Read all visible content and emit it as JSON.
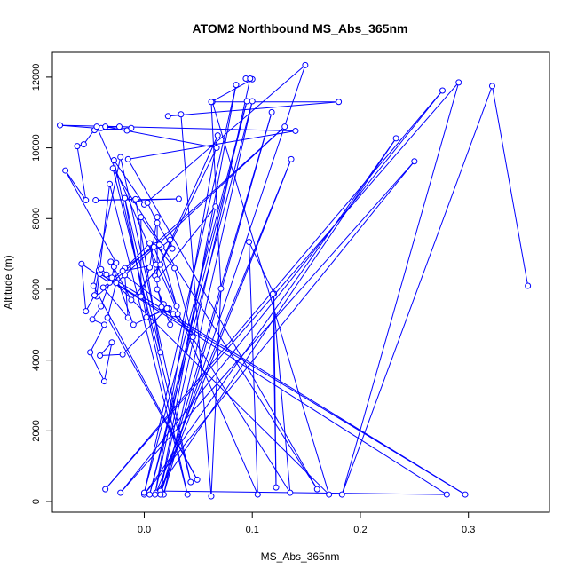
{
  "chart_data": {
    "type": "line",
    "title": "ATOM2 Northbound MS_Abs_365nm",
    "xlabel": "MS_Abs_365nm",
    "ylabel": "Altitude (m)",
    "xlim": [
      -0.085,
      0.375
    ],
    "ylim": [
      -300,
      12700
    ],
    "x_ticks": [
      0.0,
      0.1,
      0.2,
      0.3
    ],
    "x_tick_labels": [
      "0.0",
      "0.1",
      "0.2",
      "0.3"
    ],
    "y_ticks": [
      0,
      2000,
      4000,
      6000,
      8000,
      10000,
      12000
    ],
    "y_tick_labels": [
      "0",
      "2000",
      "4000",
      "6000",
      "8000",
      "10000",
      "12000"
    ],
    "grid": false,
    "legend": "none",
    "series_color": "#0000ff",
    "markers": "open-circle",
    "series": [
      {
        "points": [
          [
            0.355,
            6100
          ],
          [
            0.322,
            11750
          ],
          [
            0.183,
            200
          ],
          [
            0.291,
            11850
          ],
          [
            -0.036,
            350
          ],
          [
            0.276,
            11620
          ],
          [
            -0.022,
            250
          ],
          [
            0.25,
            9620
          ],
          [
            0.0,
            200
          ],
          [
            0.233,
            10270
          ],
          [
            0.011,
            250
          ],
          [
            0.136,
            9680
          ],
          [
            0.015,
            300
          ],
          [
            0.28,
            200
          ],
          [
            -0.041,
            6440
          ],
          [
            0.297,
            200
          ],
          [
            -0.035,
            6420
          ],
          [
            0.171,
            200
          ],
          [
            0.063,
            11300
          ],
          [
            0.18,
            11300
          ],
          [
            0.022,
            10900
          ],
          [
            0.034,
            10950
          ],
          [
            0.062,
            150
          ],
          [
            0.071,
            6020
          ],
          [
            0.062,
            11300
          ],
          [
            0.1,
            11940
          ],
          [
            0.094,
            11960
          ],
          [
            0.098,
            11960
          ],
          [
            0.015,
            300
          ],
          [
            0.085,
            11780
          ],
          [
            0.0,
            250
          ],
          [
            0.095,
            11320
          ],
          [
            0.005,
            200
          ],
          [
            0.1,
            11320
          ],
          [
            0.018,
            200
          ],
          [
            0.118,
            11010
          ],
          [
            0.015,
            200
          ],
          [
            0.149,
            12340
          ],
          [
            0.0,
            8400
          ],
          [
            -0.028,
            9650
          ],
          [
            0.04,
            200
          ],
          [
            -0.032,
            8980
          ],
          [
            -0.044,
            5800
          ],
          [
            0.13,
            10600
          ],
          [
            -0.026,
            6180
          ],
          [
            -0.034,
            5200
          ],
          [
            0.049,
            620
          ],
          [
            -0.047,
            6100
          ],
          [
            -0.022,
            9740
          ],
          [
            0.043,
            550
          ],
          [
            -0.029,
            9420
          ],
          [
            0.16,
            350
          ],
          [
            -0.015,
            9680
          ],
          [
            0.14,
            10480
          ],
          [
            -0.078,
            10640
          ],
          [
            -0.016,
            10490
          ],
          [
            -0.012,
            10560
          ],
          [
            -0.046,
            10500
          ],
          [
            -0.04,
            10560
          ],
          [
            -0.023,
            10600
          ],
          [
            -0.036,
            10600
          ],
          [
            0.067,
            10000
          ],
          [
            0.01,
            6380
          ],
          [
            0.068,
            10350
          ],
          [
            0.01,
            200
          ],
          [
            0.066,
            8340
          ],
          [
            0.012,
            6280
          ],
          [
            0.012,
            8040
          ],
          [
            0.005,
            6620
          ],
          [
            -0.003,
            5800
          ],
          [
            -0.003,
            8040
          ],
          [
            0.016,
            7200
          ],
          [
            0.024,
            7400
          ],
          [
            0.026,
            7150
          ],
          [
            0.012,
            7880
          ],
          [
            0.003,
            8450
          ],
          [
            -0.009,
            8520
          ],
          [
            0.032,
            8560
          ],
          [
            -0.045,
            8520
          ],
          [
            -0.008,
            8550
          ],
          [
            0.015,
            4220
          ],
          [
            -0.018,
            8580
          ],
          [
            0.002,
            5210
          ],
          [
            0.023,
            5460
          ],
          [
            0.045,
            4650
          ],
          [
            0.028,
            6600
          ],
          [
            0.011,
            7240
          ],
          [
            0.014,
            7260
          ],
          [
            0.03,
            5520
          ],
          [
            0.009,
            7200
          ],
          [
            -0.018,
            6600
          ],
          [
            -0.038,
            6050
          ],
          [
            -0.015,
            5200
          ],
          [
            -0.018,
            6400
          ],
          [
            0.018,
            5580
          ],
          [
            0.012,
            6000
          ],
          [
            0.024,
            5000
          ],
          [
            0.027,
            5300
          ],
          [
            0.016,
            5500
          ],
          [
            0.005,
            7300
          ],
          [
            -0.02,
            6520
          ],
          [
            0.011,
            6700
          ],
          [
            0.015,
            6700
          ],
          [
            -0.012,
            5700
          ],
          [
            -0.031,
            6780
          ],
          [
            -0.01,
            5000
          ],
          [
            0.021,
            5460
          ],
          [
            -0.02,
            4160
          ],
          [
            -0.041,
            4130
          ],
          [
            -0.03,
            4500
          ],
          [
            -0.037,
            3400
          ],
          [
            -0.05,
            4220
          ],
          [
            -0.037,
            5000
          ],
          [
            -0.048,
            5150
          ],
          [
            -0.04,
            5520
          ],
          [
            -0.032,
            6190
          ],
          [
            -0.058,
            6720
          ],
          [
            -0.054,
            5380
          ],
          [
            -0.046,
            5830
          ],
          [
            -0.042,
            6540
          ],
          [
            -0.04,
            6570
          ],
          [
            -0.03,
            6330
          ],
          [
            -0.028,
            6640
          ],
          [
            -0.026,
            6750
          ],
          [
            -0.073,
            9360
          ],
          [
            -0.054,
            8520
          ],
          [
            -0.062,
            10050
          ],
          [
            -0.056,
            10100
          ],
          [
            -0.044,
            10600
          ],
          [
            0.105,
            200
          ],
          [
            0.097,
            7340
          ],
          [
            0.12,
            5880
          ],
          [
            0.122,
            400
          ],
          [
            0.119,
            5870
          ],
          [
            0.135,
            250
          ],
          [
            0.031,
            5300
          ]
        ]
      }
    ]
  }
}
